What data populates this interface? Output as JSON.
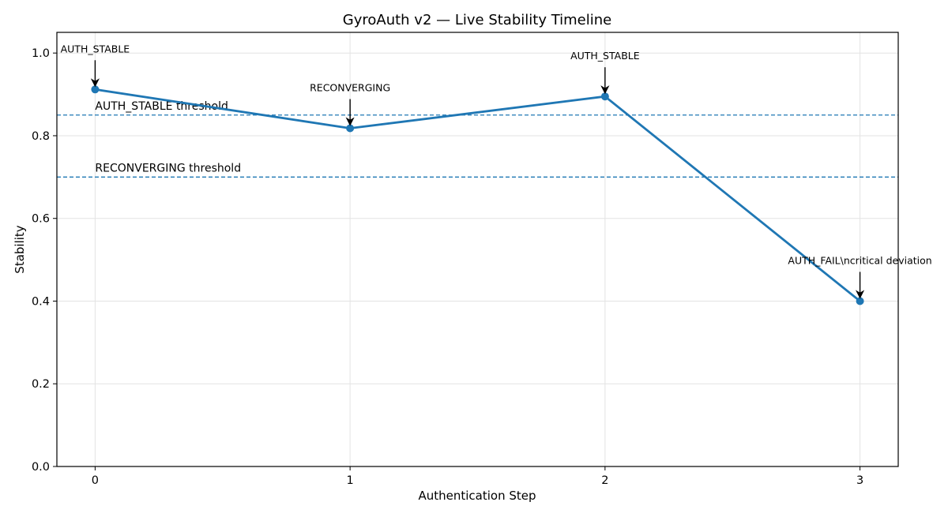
{
  "chart_data": {
    "type": "line",
    "title": "GyroAuth v2 — Live Stability Timeline",
    "xlabel": "Authentication Step",
    "ylabel": "Stability",
    "xlim": [
      -0.15,
      3.15
    ],
    "ylim": [
      0.0,
      1.05
    ],
    "x_ticks": [
      0,
      1,
      2,
      3
    ],
    "y_ticks": [
      0.0,
      0.2,
      0.4,
      0.6,
      0.8,
      1.0
    ],
    "grid": true,
    "series": [
      {
        "x": [
          0,
          1,
          2,
          3
        ],
        "values": [
          0.912,
          0.818,
          0.895,
          0.4
        ],
        "color": "#1f77b4"
      }
    ],
    "thresholds": [
      {
        "value": 0.85,
        "label": "AUTH_STABLE threshold",
        "color": "#1f77b4"
      },
      {
        "value": 0.7,
        "label": "RECONVERGING threshold",
        "color": "#1f77b4"
      }
    ],
    "annotations": [
      {
        "x": 0,
        "y": 0.912,
        "text": "AUTH_STABLE"
      },
      {
        "x": 1,
        "y": 0.818,
        "text": "RECONVERGING"
      },
      {
        "x": 2,
        "y": 0.895,
        "text": "AUTH_STABLE"
      },
      {
        "x": 3,
        "y": 0.4,
        "text": "AUTH_FAIL\\ncritical deviation"
      }
    ]
  }
}
